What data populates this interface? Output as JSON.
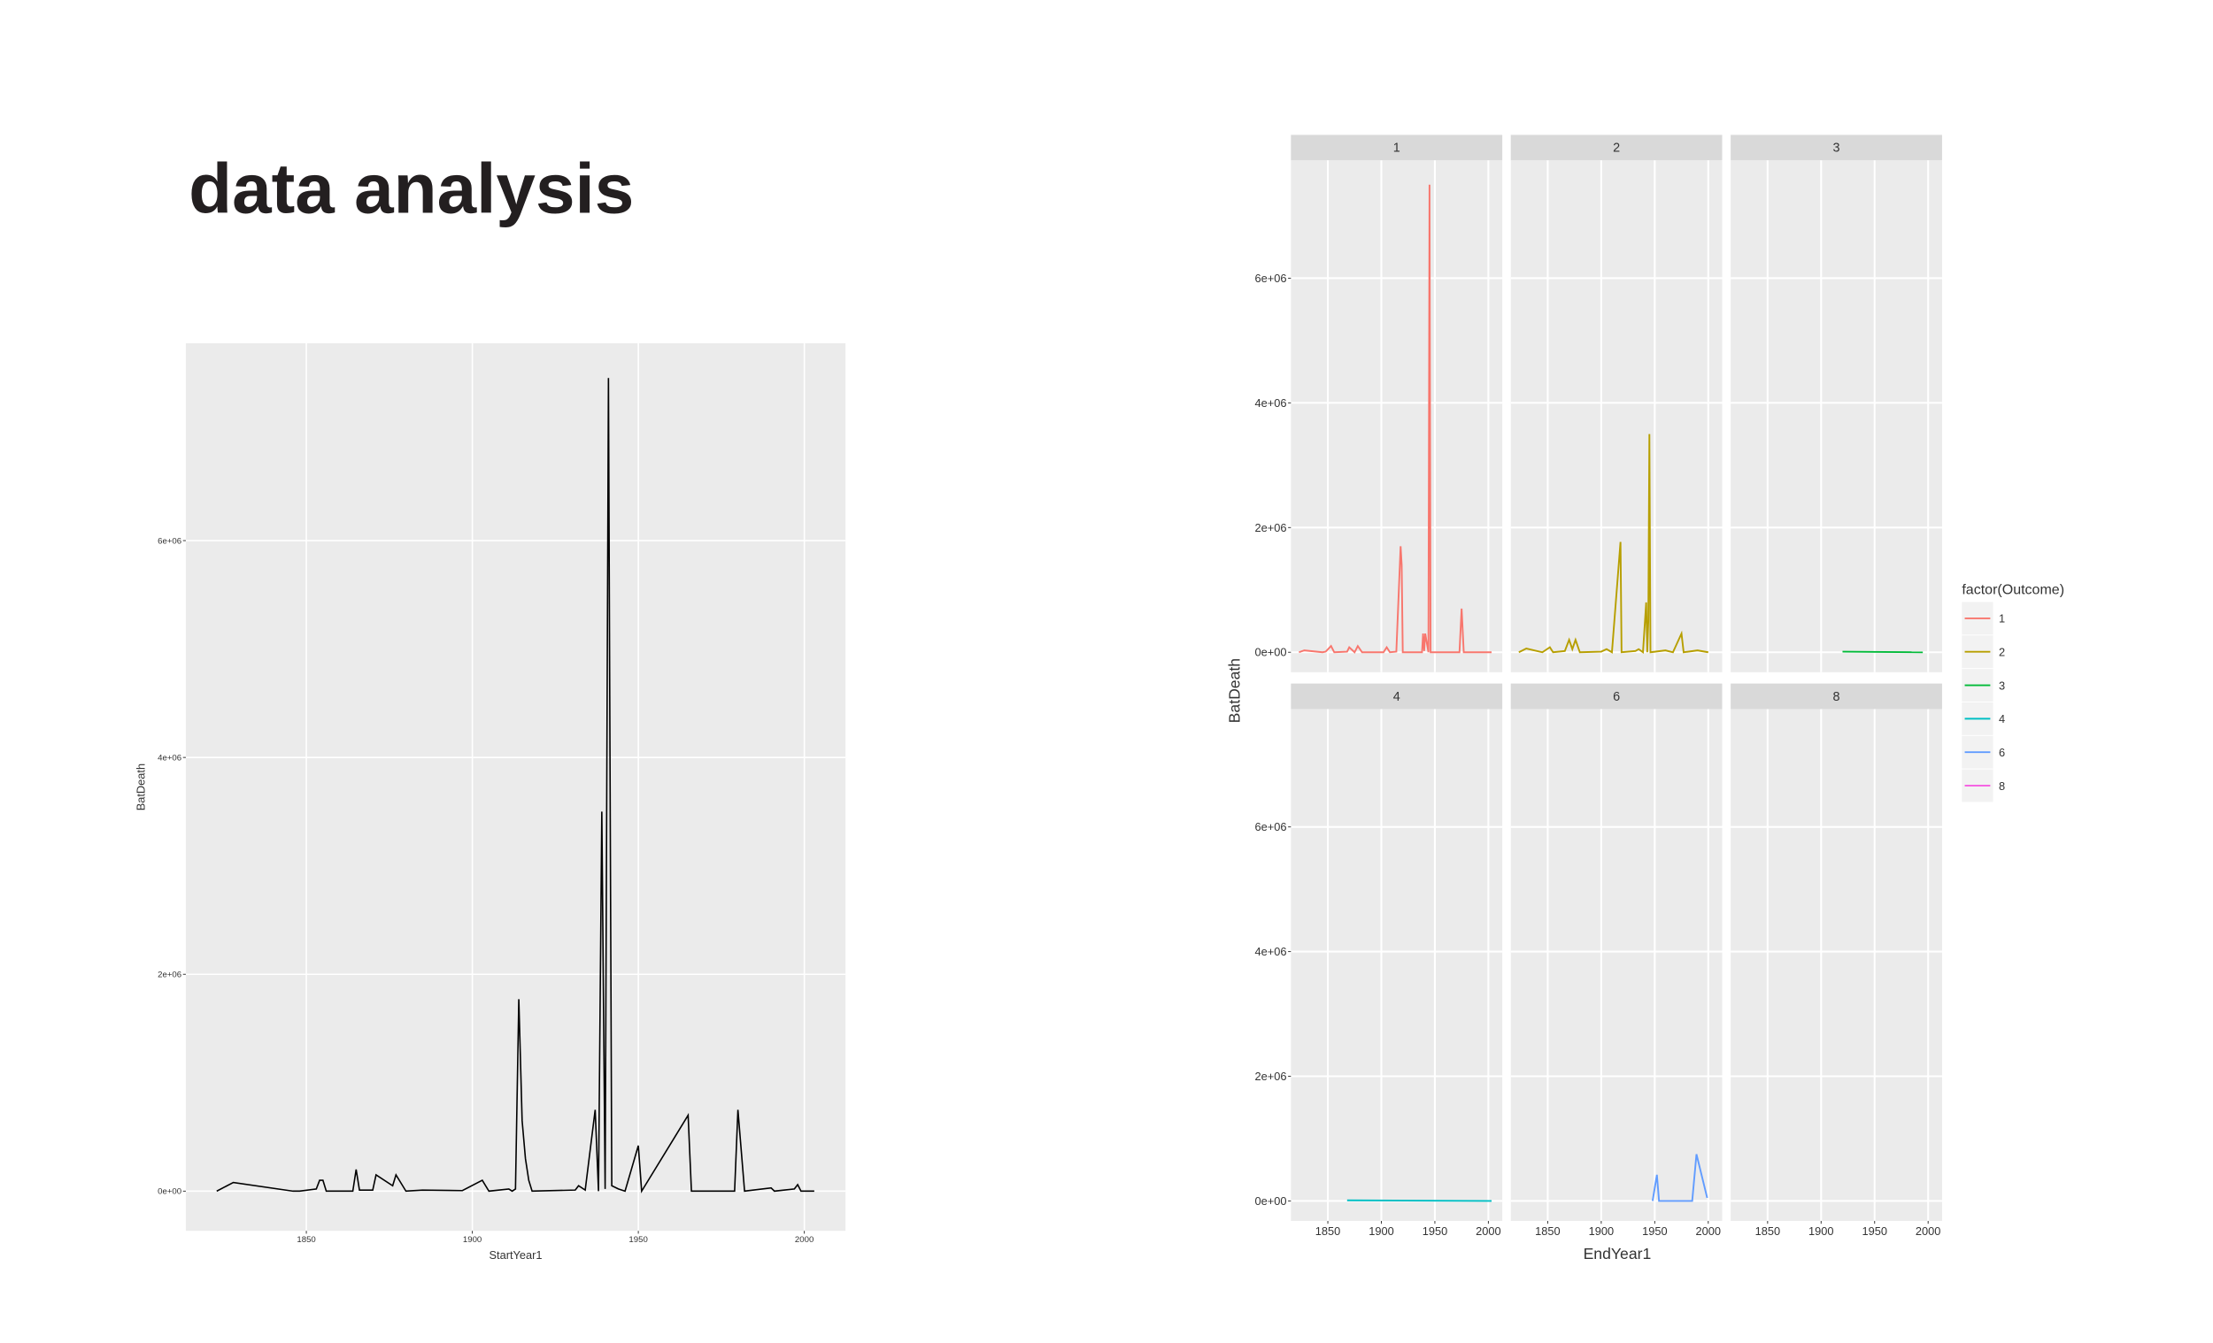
{
  "title": "data analysis",
  "chart_data": [
    {
      "type": "line",
      "x_label": "StartYear1",
      "y_label": "BatDeath",
      "color": "#000000",
      "grid": true,
      "xlim": [
        1813.7,
        2012.4
      ],
      "ylim": [
        -366000,
        7820000
      ],
      "xticks": [
        1850,
        1900,
        1950,
        2000
      ],
      "yticks": [
        {
          "value": 0,
          "label": "0e+00"
        },
        {
          "value": 2000000,
          "label": "2e+06"
        },
        {
          "value": 4000000,
          "label": "4e+06"
        },
        {
          "value": 6000000,
          "label": "6e+06"
        }
      ],
      "x": [
        1823,
        1828,
        1846,
        1848,
        1853,
        1854,
        1855,
        1856,
        1864,
        1865,
        1866,
        1870,
        1871,
        1876,
        1877,
        1880,
        1885,
        1897,
        1903,
        1905,
        1911,
        1912,
        1913,
        1914,
        1915,
        1916,
        1917,
        1918,
        1931,
        1932,
        1934,
        1937,
        1938,
        1939,
        1940,
        1941,
        1942,
        1944,
        1946,
        1950,
        1951,
        1965,
        1966,
        1979,
        1980,
        1982,
        1990,
        1991,
        1997,
        1998,
        1999,
        2003
      ],
      "values": [
        0,
        80000,
        0,
        0,
        20000,
        100000,
        100000,
        0,
        0,
        200000,
        10000,
        10000,
        150000,
        50000,
        150000,
        0,
        10000,
        5000,
        100000,
        0,
        20000,
        0,
        20000,
        1770000,
        650000,
        300000,
        100000,
        0,
        10000,
        50000,
        10000,
        750000,
        0,
        3500000,
        20000,
        7500000,
        50000,
        20000,
        0,
        420000,
        0,
        700000,
        0,
        0,
        750000,
        0,
        30000,
        0,
        20000,
        60000,
        0,
        0
      ]
    },
    {
      "type": "line",
      "facet": true,
      "x_label": "EndYear1",
      "y_label": "BatDeath",
      "legend_title": "factor(Outcome)",
      "grid": true,
      "xlim": [
        1815.5,
        2013
      ],
      "ylim": [
        -320000,
        7890000
      ],
      "xticks": [
        1850,
        1900,
        1950,
        2000
      ],
      "yticks": [
        {
          "value": 0,
          "label": "0e+00"
        },
        {
          "value": 2000000,
          "label": "2e+06"
        },
        {
          "value": 4000000,
          "label": "4e+06"
        },
        {
          "value": 6000000,
          "label": "6e+06"
        }
      ],
      "series": [
        {
          "name": "1",
          "color": "#F8766D",
          "x": [
            1823,
            1828,
            1845,
            1848,
            1853,
            1856,
            1868,
            1870,
            1875,
            1878,
            1882,
            1902,
            1905,
            1908,
            1914,
            1918,
            1919,
            1920,
            1938,
            1939,
            1940,
            1941,
            1944,
            1945,
            1946,
            1973,
            1975,
            1977,
            1995,
            2003
          ],
          "values": [
            0,
            30000,
            0,
            10000,
            100000,
            0,
            10000,
            80000,
            0,
            100000,
            0,
            0,
            80000,
            0,
            10000,
            1700000,
            1400000,
            0,
            0,
            300000,
            20000,
            300000,
            0,
            7500000,
            0,
            0,
            700000,
            0,
            0,
            0
          ]
        },
        {
          "name": "2",
          "color": "#B79F00",
          "x": [
            1823,
            1830,
            1845,
            1852,
            1855,
            1866,
            1870,
            1873,
            1876,
            1880,
            1900,
            1905,
            1910,
            1918,
            1919,
            1932,
            1935,
            1939,
            1942,
            1943,
            1944,
            1945,
            1946,
            1960,
            1967,
            1975,
            1977,
            1990,
            2000
          ],
          "values": [
            0,
            60000,
            0,
            80000,
            0,
            20000,
            200000,
            50000,
            200000,
            0,
            10000,
            50000,
            0,
            1770000,
            0,
            20000,
            50000,
            0,
            800000,
            0,
            500000,
            3500000,
            0,
            30000,
            0,
            300000,
            0,
            30000,
            0
          ]
        },
        {
          "name": "3",
          "color": "#00BA38",
          "x": [
            1920,
            1995
          ],
          "values": [
            10000,
            0
          ]
        },
        {
          "name": "4",
          "color": "#00BFC4",
          "x": [
            1868,
            2003
          ],
          "values": [
            10000,
            0
          ]
        },
        {
          "name": "6",
          "color": "#619CFF",
          "x": [
            1948,
            1952,
            1954,
            1985,
            1989,
            1999
          ],
          "values": [
            0,
            420000,
            0,
            0,
            750000,
            50000
          ]
        },
        {
          "name": "8",
          "color": "#F564E3",
          "x": [],
          "values": []
        }
      ]
    }
  ]
}
